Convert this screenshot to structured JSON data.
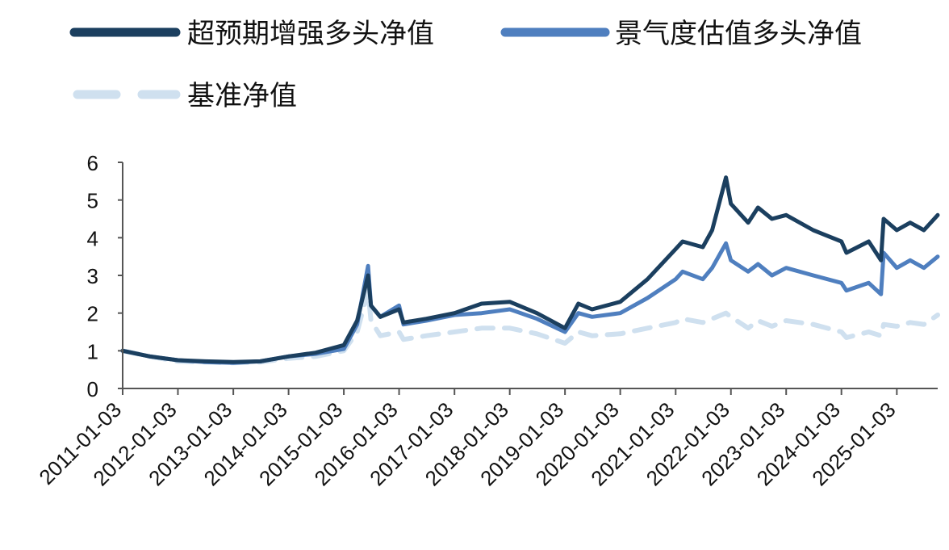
{
  "chart_data": {
    "type": "line",
    "title": "",
    "xlabel": "",
    "ylabel": "",
    "ylim": [
      0,
      6
    ],
    "yticks": [
      0,
      1,
      2,
      3,
      4,
      5,
      6
    ],
    "grid": false,
    "legend_position": "top",
    "x_tick_labels": [
      "2011-01-03",
      "2012-01-03",
      "2013-01-03",
      "2014-01-03",
      "2015-01-03",
      "2016-01-03",
      "2017-01-03",
      "2018-01-03",
      "2019-01-03",
      "2020-01-03",
      "2021-01-03",
      "2022-01-03",
      "2023-01-03",
      "2024-01-03",
      "2025-01-03"
    ],
    "x_range": [
      "2011-01-03",
      "2025-09-30"
    ],
    "x": [
      "2011-01-03",
      "2011-07-01",
      "2012-01-03",
      "2012-07-01",
      "2013-01-03",
      "2013-07-01",
      "2014-01-03",
      "2014-07-01",
      "2015-01-03",
      "2015-04-01",
      "2015-06-12",
      "2015-07-01",
      "2015-09-01",
      "2016-01-03",
      "2016-02-01",
      "2016-07-01",
      "2017-01-03",
      "2017-07-01",
      "2018-01-03",
      "2018-07-01",
      "2019-01-03",
      "2019-04-01",
      "2019-07-01",
      "2020-01-03",
      "2020-07-01",
      "2021-01-03",
      "2021-02-18",
      "2021-07-01",
      "2021-09-01",
      "2021-12-01",
      "2022-01-03",
      "2022-04-27",
      "2022-07-01",
      "2022-10-01",
      "2023-01-03",
      "2023-07-01",
      "2024-01-03",
      "2024-02-05",
      "2024-07-01",
      "2024-09-20",
      "2024-10-08",
      "2025-01-03",
      "2025-04-01",
      "2025-07-01",
      "2025-09-30"
    ],
    "series": [
      {
        "name": "超预期增强多头净值",
        "color": "#1b3f5f",
        "style": "solid",
        "values": [
          1.0,
          0.85,
          0.75,
          0.72,
          0.7,
          0.72,
          0.85,
          0.95,
          1.15,
          1.8,
          3.0,
          2.2,
          1.9,
          2.1,
          1.75,
          1.85,
          2.0,
          2.25,
          2.3,
          2.0,
          1.6,
          2.25,
          2.1,
          2.3,
          2.9,
          3.7,
          3.9,
          3.75,
          4.2,
          5.6,
          4.9,
          4.4,
          4.8,
          4.5,
          4.6,
          4.2,
          3.9,
          3.6,
          3.9,
          3.4,
          4.5,
          4.2,
          4.4,
          4.2,
          4.6
        ]
      },
      {
        "name": "景气度估值多头净值",
        "color": "#4f7fbf",
        "style": "solid",
        "values": [
          1.0,
          0.85,
          0.75,
          0.7,
          0.68,
          0.72,
          0.85,
          0.92,
          1.05,
          1.7,
          3.25,
          2.2,
          1.9,
          2.2,
          1.7,
          1.8,
          1.95,
          2.0,
          2.1,
          1.85,
          1.5,
          2.0,
          1.9,
          2.0,
          2.4,
          2.9,
          3.1,
          2.9,
          3.2,
          3.85,
          3.4,
          3.1,
          3.3,
          3.0,
          3.2,
          3.0,
          2.8,
          2.6,
          2.8,
          2.5,
          3.6,
          3.2,
          3.4,
          3.2,
          3.5
        ]
      },
      {
        "name": "基准净值",
        "color": "#cfe0ef",
        "style": "dashed",
        "values": [
          1.0,
          0.85,
          0.72,
          0.7,
          0.68,
          0.7,
          0.8,
          0.85,
          1.0,
          1.5,
          2.6,
          1.8,
          1.4,
          1.5,
          1.3,
          1.4,
          1.5,
          1.6,
          1.6,
          1.45,
          1.2,
          1.5,
          1.4,
          1.45,
          1.6,
          1.75,
          1.85,
          1.75,
          1.85,
          2.0,
          1.9,
          1.6,
          1.8,
          1.65,
          1.8,
          1.7,
          1.5,
          1.35,
          1.5,
          1.4,
          1.7,
          1.65,
          1.75,
          1.7,
          1.95
        ]
      }
    ]
  }
}
